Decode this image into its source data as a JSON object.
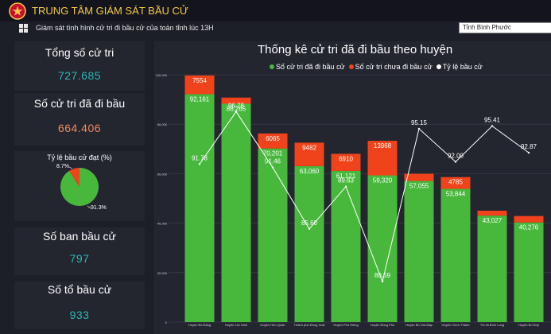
{
  "header": {
    "title": "TRUNG TÂM GIÁM SÁT BẦU CỬ",
    "subtitle": "Giám sát tình hình cử tri đi bầu cử của toàn tỉnh lúc 13H",
    "province_select": "Tỉnh Bình Phước"
  },
  "cards": {
    "total_voters": {
      "label": "Tổng số cử tri",
      "value": "727.685"
    },
    "voted": {
      "label": "Số cử tri đã đi bầu",
      "value": "664.406"
    },
    "rate": {
      "label": "Tỷ lệ bầu cử đạt (%)",
      "voted_pct_label": "91.3%",
      "not_voted_pct_label": "8.7%"
    },
    "committees": {
      "label": "Số ban bầu cử",
      "value": "797"
    },
    "groups": {
      "label": "Số tổ bầu cử",
      "value": "933"
    }
  },
  "colors": {
    "voted": "#47b83c",
    "not_voted": "#f0431b",
    "rate_line": "#ffffff",
    "teal_value": "#2bb7b8",
    "orange_value": "#f08a5d",
    "title_gold": "#f5c94a"
  },
  "chart_data": {
    "type": "bar",
    "title": "Thống kê cử tri đã đi bầu theo huyện",
    "legend": [
      "Số cử tri đã đi bầu cử",
      "Số cử tri chưa đi bầu cử",
      "Tỷ lệ bầu cử"
    ],
    "legend_position": "top",
    "categories": [
      "Huyện Bù Đăng",
      "Huyện Lộc Ninh",
      "Huyện Hớn Quản",
      "Thành phố Đồng Xoài",
      "Huyện Phú Riềng",
      "Huyện Đồng Phú",
      "Huyện Bù Gia Mập",
      "Huyện Chơn Thành",
      "Thị xã Bình Long",
      "Huyện Bù Đốp"
    ],
    "series": [
      {
        "name": "Số cử tri đã đi bầu cử",
        "values": [
          92161,
          88265,
          70201,
          63060,
          61121,
          59320,
          57055,
          53844,
          43027,
          40276
        ],
        "labels": [
          "92,161",
          "88,265",
          "70,201",
          "63,060",
          "61,121",
          "59,320",
          "57,055",
          "53,844",
          "43,027",
          "40,276"
        ]
      },
      {
        "name": "Số cử tri chưa đi bầu cử",
        "values": [
          7554,
          2500,
          6065,
          9482,
          6910,
          13968,
          2900,
          4785,
          2000,
          2600
        ],
        "labels": [
          "7554",
          "",
          "6065",
          "9482",
          "6910",
          "13968",
          "",
          "4785",
          "",
          ""
        ]
      },
      {
        "name": "Tỷ lệ bầu cử",
        "values": [
          91.78,
          96.78,
          91.46,
          85.6,
          89.63,
          80.59,
          95.15,
          92.0,
          95.41,
          92.87
        ],
        "labels": [
          "91.78",
          "96.78",
          "91.46",
          "85.60",
          "89.63",
          "80.59",
          "95.15",
          "92.00",
          "95.41",
          "92.87"
        ]
      }
    ],
    "y_ticks": [
      "0",
      "20,000",
      "40,000",
      "60,000",
      "80,000",
      "100,000"
    ],
    "ylim": [
      0,
      100000
    ],
    "rate_ylim": [
      78,
      100
    ],
    "grid": true
  }
}
